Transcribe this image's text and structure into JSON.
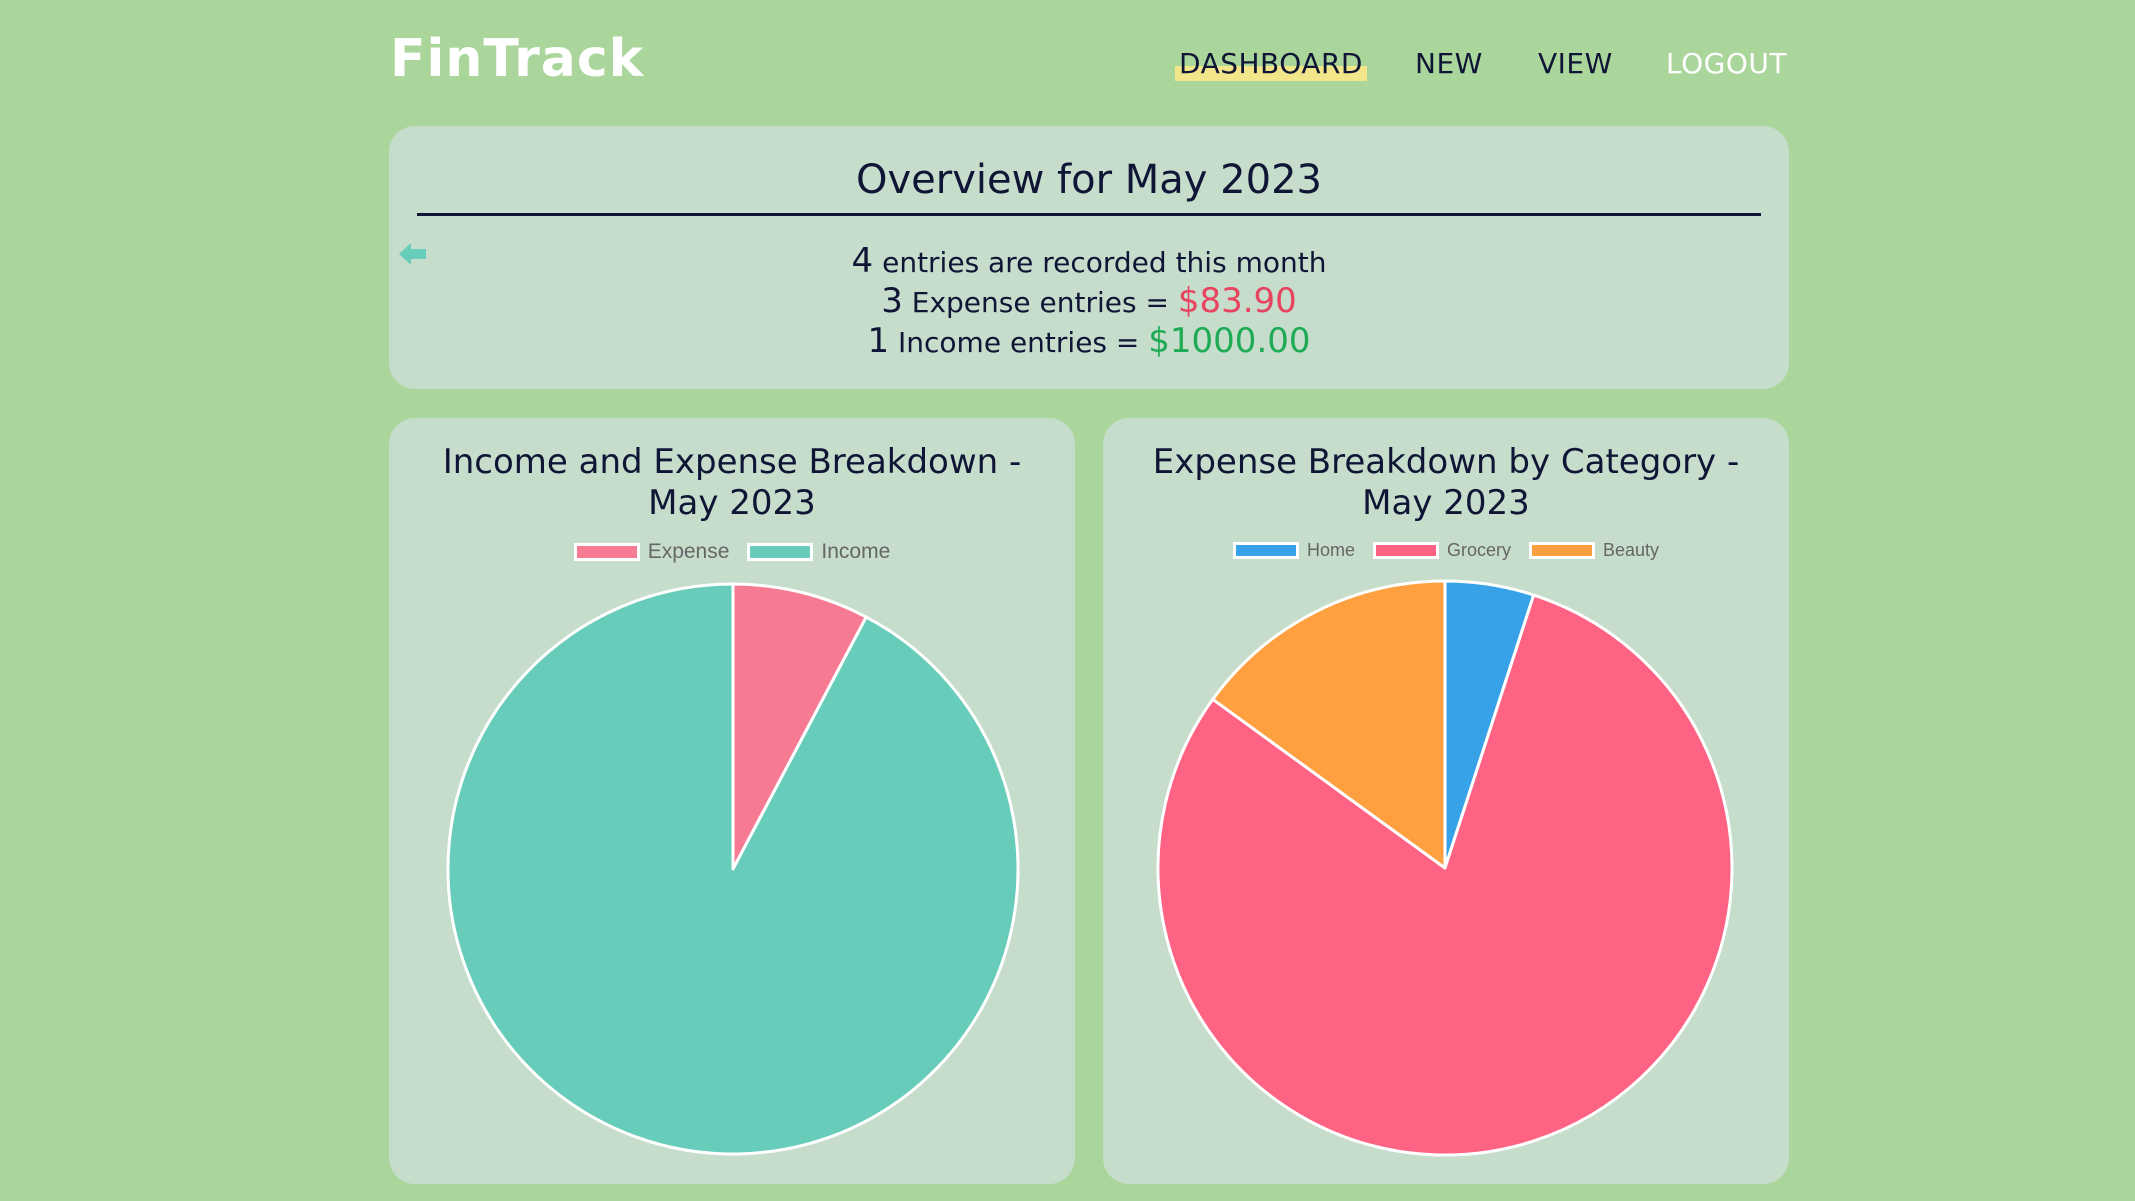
{
  "header": {
    "logo": "FinTrack",
    "nav": {
      "dashboard": "DASHBOARD",
      "new": "NEW",
      "view": "VIEW",
      "logout": "LOGOUT"
    }
  },
  "overview": {
    "title": "Overview for May 2023",
    "entries_count": "4",
    "entries_text": "entries are recorded this month",
    "expense_count": "3",
    "expense_text": "Expense entries =",
    "expense_amount": "$83.90",
    "income_count": "1",
    "income_text": "Income entries =",
    "income_amount": "$1000.00"
  },
  "colors": {
    "expense": "#f67a92",
    "income": "#67ccb9",
    "home": "#38a2e8",
    "grocery": "#ff6384",
    "beauty": "#ffa040",
    "expense_amount": "#e8435f",
    "income_amount": "#1faa55"
  },
  "chart_data": [
    {
      "type": "pie",
      "title": "Income and Expense Breakdown - May 2023",
      "categories": [
        "Expense",
        "Income"
      ],
      "values": [
        83.9,
        1000.0
      ],
      "colors": [
        "#f67a92",
        "#67ccb9"
      ],
      "legend": "top"
    },
    {
      "type": "pie",
      "title": "Expense Breakdown by Category - May 2023",
      "categories": [
        "Home",
        "Grocery",
        "Beauty"
      ],
      "values": [
        5,
        80,
        15
      ],
      "colors": [
        "#38a2e8",
        "#ff6384",
        "#ffa040"
      ],
      "legend": "top"
    }
  ]
}
